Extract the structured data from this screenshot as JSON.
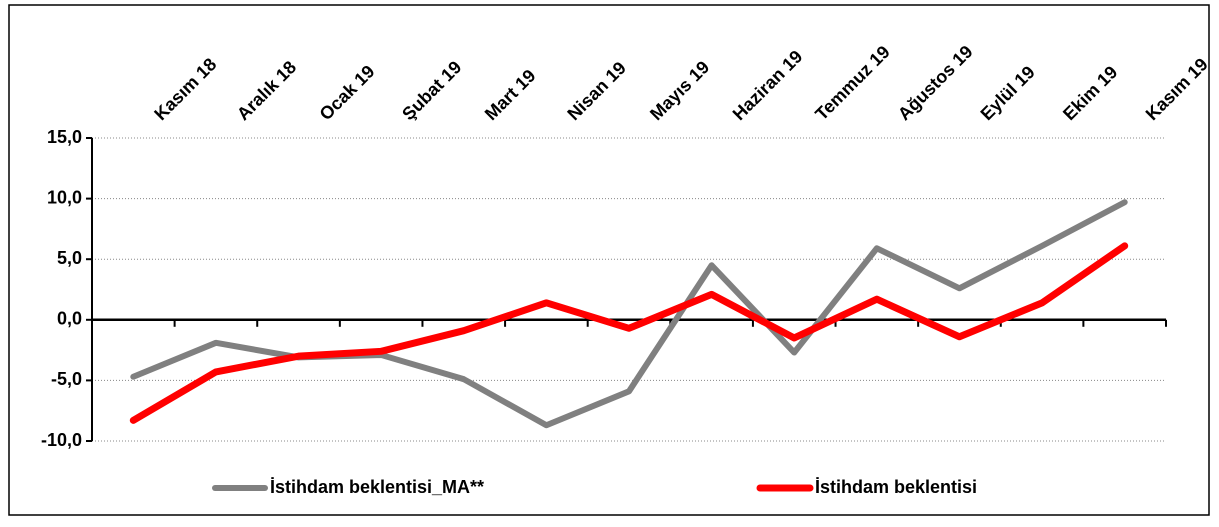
{
  "chart_data": {
    "type": "line",
    "categories": [
      "Kasım 18",
      "Aralık 18",
      "Ocak 19",
      "Şubat 19",
      "Mart 19",
      "Nisan 19",
      "Mayıs 19",
      "Haziran 19",
      "Temmuz 19",
      "Ağustos 19",
      "Eylül 19",
      "Ekim 19",
      "Kasım 19"
    ],
    "series": [
      {
        "name": "İstihdam beklentisi_MA**",
        "color": "#808080",
        "values": [
          -4.7,
          -1.9,
          -3.1,
          -2.9,
          -4.9,
          -8.7,
          -5.9,
          4.5,
          -2.7,
          5.9,
          2.6,
          6.1,
          9.7
        ]
      },
      {
        "name": "İstihdam beklentisi",
        "color": "#ff0000",
        "values": [
          -8.3,
          -4.3,
          -3.0,
          -2.6,
          -0.9,
          1.4,
          -0.7,
          2.1,
          -1.5,
          1.7,
          -1.4,
          1.4,
          6.1
        ]
      }
    ],
    "ylim": [
      -10,
      15
    ],
    "yticks": [
      {
        "value": -10,
        "label": "-10,0"
      },
      {
        "value": -5,
        "label": "-5,0"
      },
      {
        "value": 0,
        "label": "0,0"
      },
      {
        "value": 5,
        "label": "5,0"
      },
      {
        "value": 10,
        "label": "10,0"
      },
      {
        "value": 15,
        "label": "15,0"
      }
    ],
    "grid": true,
    "legend": "bottom"
  }
}
